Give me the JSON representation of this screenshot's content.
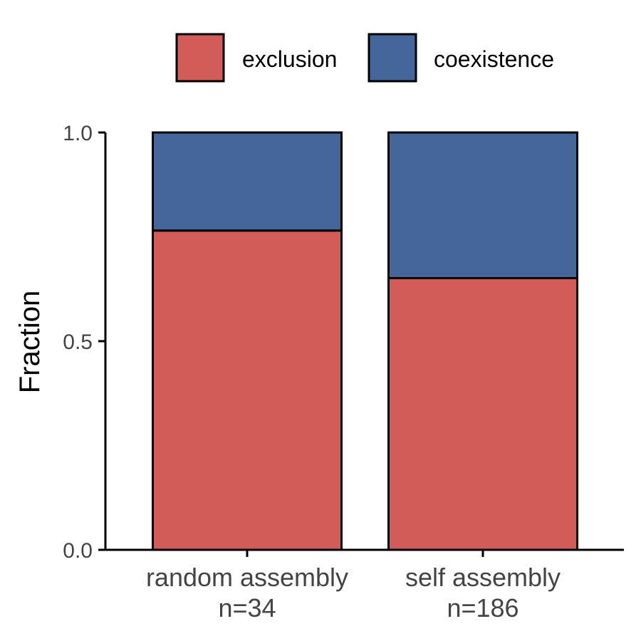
{
  "chart_data": {
    "type": "bar",
    "stacked": true,
    "categories": [
      "random assembly\nn=34",
      "self assembly\nn=186"
    ],
    "series": [
      {
        "name": "exclusion",
        "values": [
          0.765,
          0.651
        ],
        "color": "#D25C57"
      },
      {
        "name": "coexistence",
        "values": [
          0.235,
          0.349
        ],
        "color": "#45669B"
      }
    ],
    "ylabel": "Fraction",
    "xlabel": "",
    "ylim": [
      0,
      1
    ],
    "yticks": [
      0.0,
      0.5,
      1.0
    ],
    "ytick_labels": [
      "0.0",
      "0.5",
      "1.0"
    ],
    "legend_position": "top",
    "grid": false
  }
}
